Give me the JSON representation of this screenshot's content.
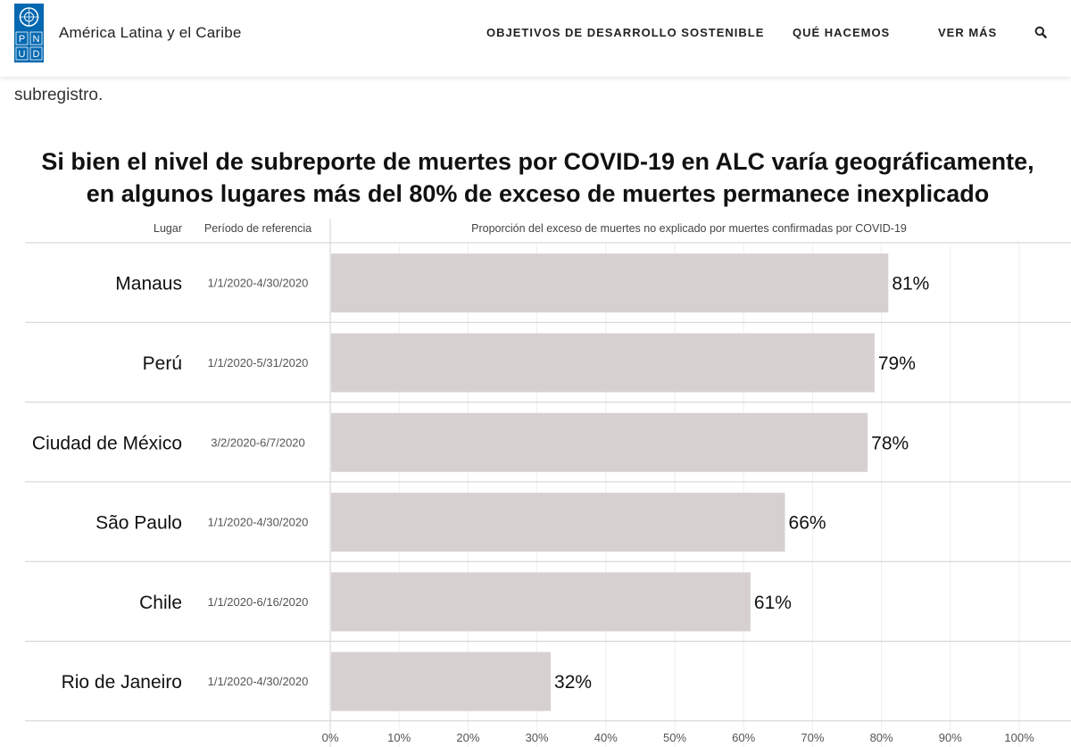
{
  "header": {
    "site_title": "América Latina y el Caribe",
    "logo_text": "PNUD",
    "nav": [
      {
        "label": "OBJETIVOS DE DESARROLLO SOSTENIBLE"
      },
      {
        "label": "QUÉ HACEMOS"
      },
      {
        "label": "VER MÁS"
      }
    ],
    "search_icon": "search-icon"
  },
  "intro_text": "subregistro.",
  "chart_data": {
    "type": "bar",
    "title": "Si bien el nivel de subreporte de muertes por COVID-19 en ALC varía geográficamente, en algunos lugares más del 80% de exceso de muertes permanece inexplicado",
    "column_headers": {
      "place": "Lugar",
      "period": "Período de referencia",
      "measure": "Proporción del exceso de muertes no explicado por muertes confirmadas por COVID-19"
    },
    "categories": [
      "Manaus",
      "Perú",
      "Ciudad de México",
      "São Paulo",
      "Chile",
      "Rio de Janeiro"
    ],
    "periods": [
      "1/1/2020-4/30/2020",
      "1/1/2020-5/31/2020",
      "3/2/2020-6/7/2020",
      "1/1/2020-4/30/2020",
      "1/1/2020-6/16/2020",
      "1/1/2020-4/30/2020"
    ],
    "values": [
      81,
      79,
      78,
      66,
      61,
      32
    ],
    "value_labels": [
      "81%",
      "79%",
      "78%",
      "66%",
      "61%",
      "32%"
    ],
    "x_ticks": [
      "0%",
      "10%",
      "20%",
      "30%",
      "40%",
      "50%",
      "60%",
      "70%",
      "80%",
      "90%",
      "100%"
    ],
    "xlim": [
      0,
      100
    ],
    "bar_color": "#d6d1d0",
    "gridlines": true
  }
}
